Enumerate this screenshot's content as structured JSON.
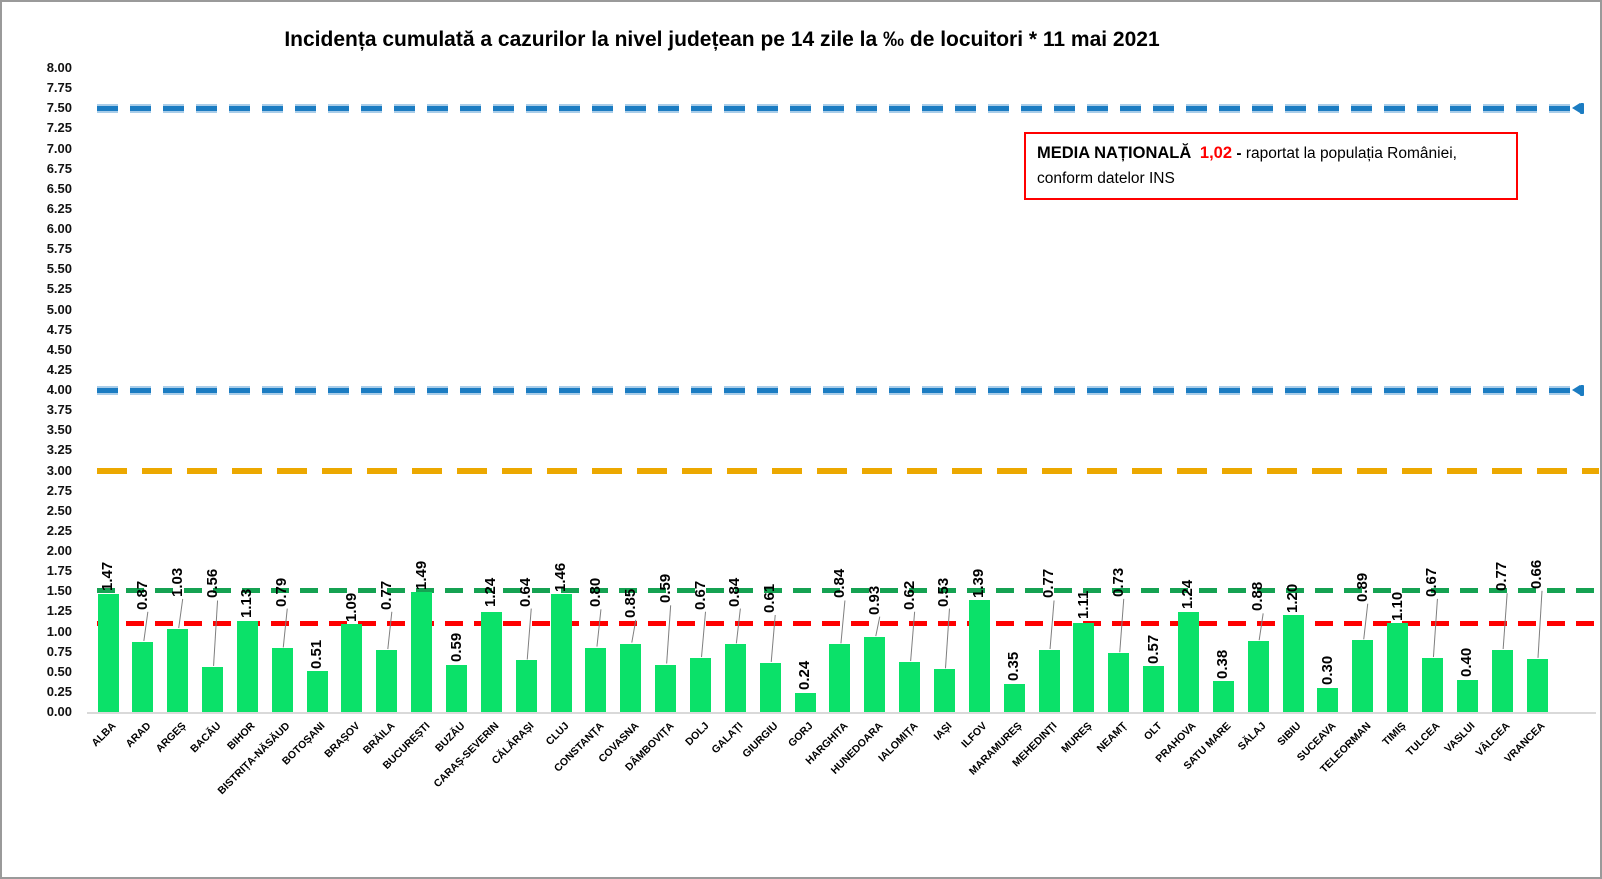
{
  "title": "Incidența cumulată a cazurilor la nivel județean pe 14 zile la ‰ de locuitori *  11 mai 2021",
  "legend": {
    "label": "MEDIA NAȚIONALĂ",
    "value": "1,02",
    "separator": "-",
    "text_line1": "raportat la populația României,",
    "text_line2": "conform datelor INS",
    "border_color": "#ff0000",
    "value_color": "#ff0000"
  },
  "chart_data": {
    "type": "bar",
    "title": "Incidența cumulată a cazurilor la nivel județean pe 14 zile la ‰ de locuitori * 11 mai 2021",
    "xlabel": "",
    "ylabel": "",
    "ylim": [
      0,
      8
    ],
    "ytick_step": 0.25,
    "grid": false,
    "legend_position": "top-right",
    "bar_color": "#0be169",
    "categories": [
      "ALBA",
      "ARAD",
      "ARGEȘ",
      "BACĂU",
      "BIHOR",
      "BISTRIȚA-NĂSĂUD",
      "BOTOȘANI",
      "BRAȘOV",
      "BRĂILA",
      "BUCUREȘTI",
      "BUZĂU",
      "CARAȘ-SEVERIN",
      "CĂLĂRAȘI",
      "CLUJ",
      "CONSTANȚA",
      "COVASNA",
      "DÂMBOVIȚA",
      "DOLJ",
      "GALAȚI",
      "GIURGIU",
      "GORJ",
      "HARGHITA",
      "HUNEDOARA",
      "IALOMIȚA",
      "IAȘI",
      "ILFOV",
      "MARAMUREȘ",
      "MEHEDINȚI",
      "MUREȘ",
      "NEAMȚ",
      "OLT",
      "PRAHOVA",
      "SATU MARE",
      "SĂLAJ",
      "SIBIU",
      "SUCEAVA",
      "TELEORMAN",
      "TIMIȘ",
      "TULCEA",
      "VASLUI",
      "VÂLCEA",
      "VRANCEA"
    ],
    "values": [
      1.47,
      0.87,
      1.03,
      0.56,
      1.13,
      0.79,
      0.51,
      1.09,
      0.77,
      1.49,
      0.59,
      1.24,
      0.64,
      1.46,
      0.8,
      0.85,
      0.59,
      0.67,
      0.84,
      0.61,
      0.24,
      0.84,
      0.93,
      0.62,
      0.53,
      1.39,
      0.35,
      0.77,
      1.11,
      0.73,
      0.57,
      1.24,
      0.38,
      0.88,
      1.2,
      0.3,
      0.89,
      1.1,
      0.67,
      0.4,
      0.77,
      0.66
    ],
    "label_pos": [
      1.5,
      1.27,
      1.43,
      1.41,
      1.17,
      1.31,
      0.54,
      1.12,
      1.27,
      1.52,
      0.62,
      1.3,
      1.31,
      1.49,
      1.3,
      1.17,
      1.35,
      1.27,
      1.31,
      1.23,
      0.27,
      1.41,
      1.21,
      1.27,
      1.31,
      1.42,
      0.38,
      1.41,
      1.15,
      1.43,
      0.6,
      1.28,
      0.41,
      1.25,
      1.23,
      0.33,
      1.37,
      1.13,
      1.43,
      0.43,
      1.5,
      1.53
    ],
    "reference_lines": [
      {
        "value": 7.5,
        "color": "#1b7cc2",
        "halo": "#a9cde9",
        "style": "dashed-arrow"
      },
      {
        "value": 4.0,
        "color": "#1b7cc2",
        "halo": "#a9cde9",
        "style": "dashed-arrow"
      },
      {
        "value": 3.0,
        "color": "#eca800",
        "halo": "",
        "style": "dashed-long"
      },
      {
        "value": 1.51,
        "color": "#15a252",
        "halo": "",
        "style": "dashed"
      },
      {
        "value": 1.1,
        "color": "#fe0000",
        "halo": "",
        "style": "dashed"
      }
    ],
    "leader_line_color": "#7f7f7f"
  }
}
